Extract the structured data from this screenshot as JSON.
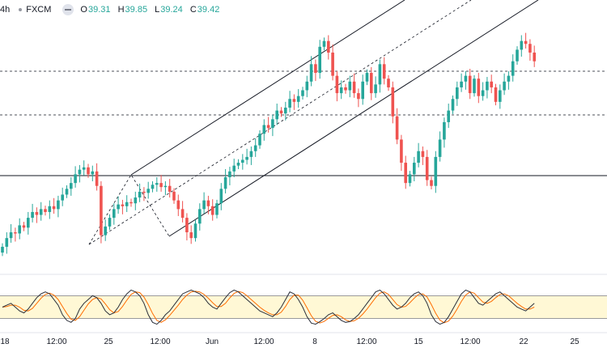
{
  "header": {
    "interval": "4h",
    "source": "FXCM",
    "ohlc": [
      {
        "k": "O",
        "v": "39.31"
      },
      {
        "k": "H",
        "v": "39.85"
      },
      {
        "k": "L",
        "v": "39.24"
      },
      {
        "k": "C",
        "v": "39.42"
      }
    ]
  },
  "xaxis": {
    "ticks": [
      {
        "label": "18",
        "x": 6
      },
      {
        "label": "12:00",
        "x": 70
      },
      {
        "label": "25",
        "x": 134
      },
      {
        "label": "12:00",
        "x": 198
      },
      {
        "label": "Jun",
        "x": 262
      },
      {
        "label": "12:00",
        "x": 326
      },
      {
        "label": "8",
        "x": 389
      },
      {
        "label": "12:00",
        "x": 453
      },
      {
        "label": "15",
        "x": 517
      },
      {
        "label": "12:00",
        "x": 581
      },
      {
        "label": "22",
        "x": 647
      },
      {
        "label": "25",
        "x": 710
      }
    ]
  },
  "colors": {
    "up": "#26a69a",
    "down": "#ef5350",
    "stoch_k": "#2a2e39",
    "stoch_d": "#ff6d00",
    "stoch_band": "#fff8d5"
  },
  "chart_data": {
    "type": "candlestick",
    "closes": [
      0.35,
      0.5,
      0.6,
      0.58,
      0.72,
      0.68,
      0.85,
      0.95,
      0.9,
      1.0,
      0.95,
      1.05,
      1.0,
      1.15,
      1.25,
      1.35,
      1.45,
      1.6,
      1.68,
      1.72,
      1.6,
      1.65,
      1.4,
      0.55,
      0.7,
      0.85,
      1.0,
      1.08,
      1.05,
      1.12,
      1.1,
      1.2,
      1.3,
      1.28,
      1.35,
      1.42,
      1.45,
      1.38,
      1.4,
      1.3,
      1.15,
      1.0,
      0.85,
      0.6,
      0.5,
      0.75,
      1.0,
      1.15,
      1.05,
      0.9,
      1.1,
      1.35,
      1.55,
      1.65,
      1.75,
      1.8,
      1.85,
      1.9,
      2.0,
      2.1,
      2.3,
      2.45,
      2.4,
      2.55,
      2.7,
      2.65,
      2.75,
      2.9,
      2.85,
      2.95,
      3.05,
      3.2,
      3.5,
      3.35,
      3.8,
      3.9,
      3.7,
      3.3,
      3.0,
      3.1,
      3.05,
      3.2,
      3.0,
      2.9,
      3.2,
      3.35,
      3.0,
      3.15,
      3.5,
      3.25,
      3.1,
      2.6,
      2.2,
      1.8,
      1.45,
      1.6,
      1.8,
      2.0,
      1.9,
      1.5,
      1.4,
      1.9,
      2.2,
      2.5,
      2.7,
      2.9,
      3.1,
      3.2,
      3.3,
      3.0,
      3.25,
      2.95,
      3.05,
      3.2,
      3.1,
      2.85,
      3.05,
      3.2,
      3.3,
      3.55,
      3.75,
      3.9,
      3.85,
      3.7,
      3.55
    ],
    "stoch_k": [
      0.5,
      0.55,
      0.6,
      0.5,
      0.4,
      0.35,
      0.45,
      0.6,
      0.75,
      0.85,
      0.9,
      0.85,
      0.7,
      0.55,
      0.3,
      0.15,
      0.1,
      0.2,
      0.45,
      0.6,
      0.7,
      0.8,
      0.75,
      0.6,
      0.4,
      0.3,
      0.35,
      0.5,
      0.7,
      0.85,
      0.95,
      0.9,
      0.8,
      0.6,
      0.3,
      0.1,
      0.05,
      0.15,
      0.3,
      0.4,
      0.55,
      0.7,
      0.85,
      0.9,
      0.95,
      0.9,
      0.85,
      0.75,
      0.6,
      0.5,
      0.45,
      0.6,
      0.75,
      0.88,
      0.95,
      0.9,
      0.8,
      0.7,
      0.6,
      0.5,
      0.4,
      0.35,
      0.3,
      0.25,
      0.35,
      0.5,
      0.7,
      0.9,
      0.85,
      0.7,
      0.5,
      0.25,
      0.08,
      0.05,
      0.12,
      0.2,
      0.3,
      0.35,
      0.25,
      0.15,
      0.1,
      0.12,
      0.2,
      0.3,
      0.45,
      0.6,
      0.75,
      0.9,
      0.95,
      0.85,
      0.7,
      0.55,
      0.45,
      0.5,
      0.6,
      0.75,
      0.85,
      0.9,
      0.8,
      0.6,
      0.3,
      0.12,
      0.05,
      0.1,
      0.25,
      0.45,
      0.65,
      0.85,
      0.95,
      0.9,
      0.75,
      0.6,
      0.55,
      0.65,
      0.75,
      0.85,
      0.9,
      0.8,
      0.7,
      0.6,
      0.5,
      0.45,
      0.4,
      0.5,
      0.6
    ]
  }
}
